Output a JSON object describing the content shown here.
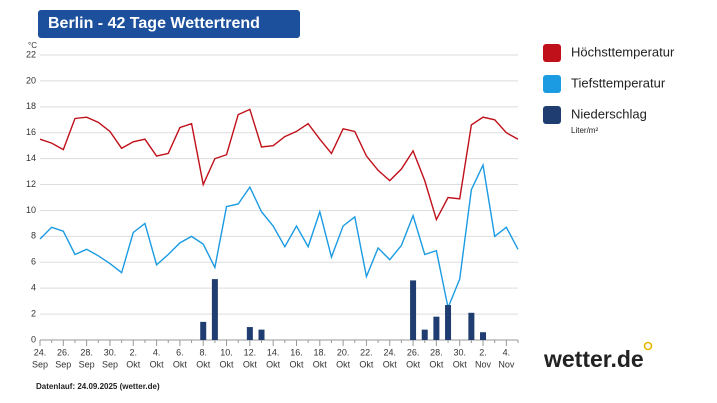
{
  "chart_data": {
    "type": "line",
    "title": "Berlin - 42 Tage Wettertrend",
    "y_unit": "°C",
    "footnote": "Datenlauf: 24.09.2025 (wetter.de)",
    "logo": "wetter.de",
    "categories": [
      "24.",
      null,
      "26.",
      null,
      "28.",
      null,
      "30.",
      null,
      "2.",
      null,
      "4.",
      null,
      "6.",
      null,
      "8.",
      null,
      "10.",
      null,
      "12.",
      null,
      "14.",
      null,
      "16.",
      null,
      "18.",
      null,
      "20.",
      null,
      "22.",
      null,
      "24.",
      null,
      "26.",
      null,
      "28.",
      null,
      "30.",
      null,
      "2.",
      null,
      "4.",
      null
    ],
    "category_months": [
      "Sep",
      null,
      "Sep",
      null,
      "Sep",
      null,
      "Sep",
      null,
      "Okt",
      null,
      "Okt",
      null,
      "Okt",
      null,
      "Okt",
      null,
      "Okt",
      null,
      "Okt",
      null,
      "Okt",
      null,
      "Okt",
      null,
      "Okt",
      null,
      "Okt",
      null,
      "Okt",
      null,
      "Okt",
      null,
      "Okt",
      null,
      "Okt",
      null,
      "Okt",
      null,
      "Nov",
      null,
      "Nov",
      null
    ],
    "series": [
      {
        "name": "Höchsttemperatur",
        "color": "#c0101a",
        "type": "line",
        "values": [
          15.5,
          15.2,
          14.7,
          17.1,
          17.2,
          16.8,
          16.1,
          14.8,
          15.3,
          15.5,
          14.2,
          14.4,
          16.4,
          16.7,
          12.0,
          14.0,
          14.3,
          17.4,
          17.8,
          14.9,
          15.0,
          15.7,
          16.1,
          16.7,
          15.5,
          14.4,
          16.3,
          16.1,
          14.2,
          13.1,
          12.3,
          13.2,
          14.6,
          12.3,
          9.3,
          11.0,
          10.9,
          16.6,
          17.2,
          17.0,
          16.0,
          15.5
        ]
      },
      {
        "name": "Tiefsttemperatur",
        "color": "#1a9be2",
        "type": "line",
        "values": [
          7.8,
          8.7,
          8.4,
          6.6,
          7.0,
          6.5,
          5.9,
          5.2,
          8.3,
          9.0,
          5.8,
          6.6,
          7.5,
          8.0,
          7.4,
          5.6,
          10.3,
          10.5,
          11.8,
          9.9,
          8.8,
          7.2,
          8.8,
          7.2,
          9.9,
          6.4,
          8.8,
          9.5,
          4.9,
          7.1,
          6.2,
          7.3,
          9.6,
          6.6,
          6.9,
          2.5,
          4.7,
          11.6,
          13.5,
          8.0,
          8.7,
          7.0
        ]
      },
      {
        "name": "Niederschlag",
        "unit": "Liter/m²",
        "color": "#1f3d70",
        "type": "bar",
        "values": [
          0,
          0,
          0,
          0,
          0,
          0,
          0,
          0,
          0,
          0,
          0,
          0,
          0,
          0,
          1.4,
          4.7,
          0,
          0,
          1.0,
          0.8,
          0,
          0,
          0,
          0,
          0,
          0,
          0,
          0,
          0,
          0,
          0,
          0,
          4.6,
          0.8,
          1.8,
          2.7,
          0,
          2.1,
          0.6,
          0,
          0,
          0
        ]
      }
    ],
    "ylim": [
      0,
      22
    ],
    "yticks": [
      0,
      2,
      4,
      6,
      8,
      10,
      12,
      14,
      16,
      18,
      20,
      22
    ],
    "grid": true,
    "legend": "right"
  }
}
